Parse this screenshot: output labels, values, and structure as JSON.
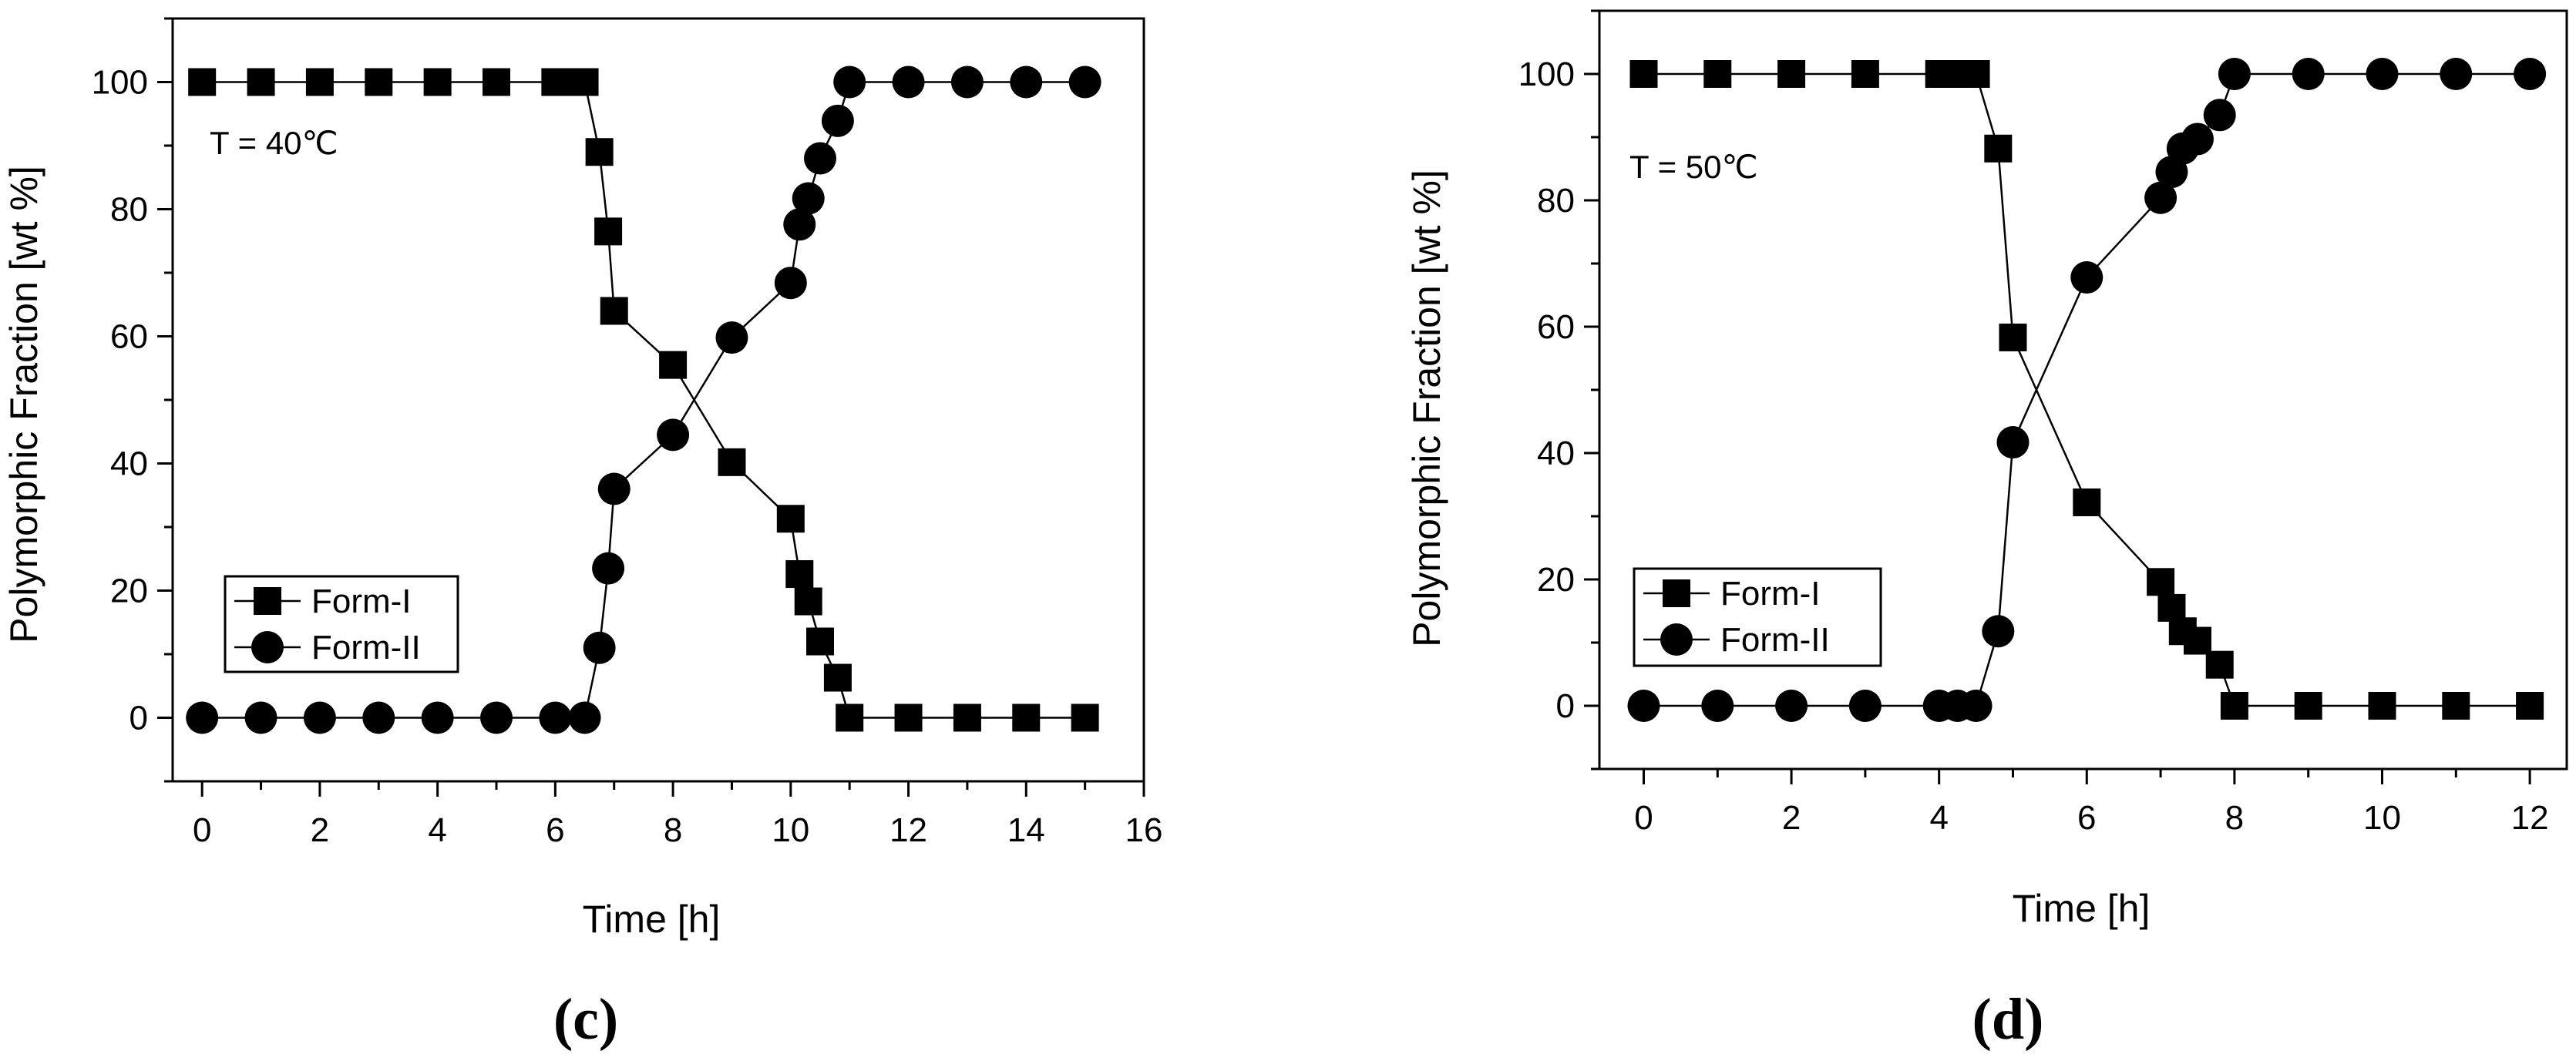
{
  "chart_data": [
    {
      "type": "line",
      "panel_label": "(c)",
      "annotation": "T = 40℃",
      "xlabel": "Time [h]",
      "ylabel": "Polymorphic Fraction [wt %]",
      "xlim": [
        -0.5,
        16
      ],
      "ylim": [
        -10,
        110
      ],
      "xticks": [
        0,
        2,
        4,
        6,
        8,
        10,
        12,
        14,
        16
      ],
      "yticks": [
        0,
        20,
        40,
        60,
        80,
        100
      ],
      "legend_position": "bottom-left",
      "series": [
        {
          "name": "Form-I",
          "marker": "square",
          "x": [
            0,
            1,
            2,
            3,
            4,
            5,
            6,
            6.25,
            6.5,
            6.75,
            6.9,
            7,
            8,
            9,
            10,
            10.15,
            10.3,
            10.5,
            10.8,
            11,
            12,
            13,
            14,
            15
          ],
          "y": [
            100,
            100,
            100,
            100,
            100,
            100,
            100,
            100,
            100,
            89,
            76.5,
            64,
            55.5,
            40.2,
            31.3,
            22.6,
            18.3,
            12,
            6.3,
            0,
            0,
            0,
            0,
            0
          ]
        },
        {
          "name": "Form-II",
          "marker": "circle",
          "x": [
            0,
            1,
            2,
            3,
            4,
            5,
            6,
            6.5,
            6.75,
            6.9,
            7,
            8,
            9,
            10,
            10.15,
            10.3,
            10.5,
            10.8,
            11,
            12,
            13,
            14,
            15
          ],
          "y": [
            0,
            0,
            0,
            0,
            0,
            0,
            0,
            0,
            11,
            23.5,
            36,
            44.5,
            59.8,
            68.4,
            77.6,
            81.7,
            88,
            93.9,
            100,
            100,
            100,
            100,
            100
          ]
        }
      ]
    },
    {
      "type": "line",
      "panel_label": "(d)",
      "annotation": "T = 50℃",
      "xlabel": "Time [h]",
      "ylabel": "Polymorphic Fraction [wt %]",
      "xlim": [
        -0.6,
        12.5
      ],
      "ylim": [
        -10,
        110
      ],
      "xticks": [
        0,
        2,
        4,
        6,
        8,
        10,
        12
      ],
      "yticks": [
        0,
        20,
        40,
        60,
        80,
        100
      ],
      "legend_position": "bottom-left",
      "series": [
        {
          "name": "Form-I",
          "marker": "square",
          "x": [
            0,
            1,
            2,
            3,
            4,
            4.25,
            4.5,
            4.8,
            5,
            6,
            7,
            7.15,
            7.3,
            7.5,
            7.8,
            8,
            9,
            10,
            11,
            12
          ],
          "y": [
            100,
            100,
            100,
            100,
            100,
            100,
            100,
            88.2,
            58.3,
            32.2,
            19.6,
            15.5,
            11.8,
            10.3,
            6.5,
            0,
            0,
            0,
            0,
            0
          ]
        },
        {
          "name": "Form-II",
          "marker": "circle",
          "x": [
            0,
            1,
            2,
            3,
            4,
            4.25,
            4.5,
            4.8,
            5,
            6,
            7,
            7.15,
            7.3,
            7.5,
            7.8,
            8,
            9,
            10,
            11,
            12
          ],
          "y": [
            0,
            0,
            0,
            0,
            0,
            0,
            0,
            11.8,
            41.7,
            67.8,
            80.4,
            84.5,
            88.2,
            89.7,
            93.5,
            100,
            100,
            100,
            100,
            100
          ]
        }
      ]
    }
  ]
}
